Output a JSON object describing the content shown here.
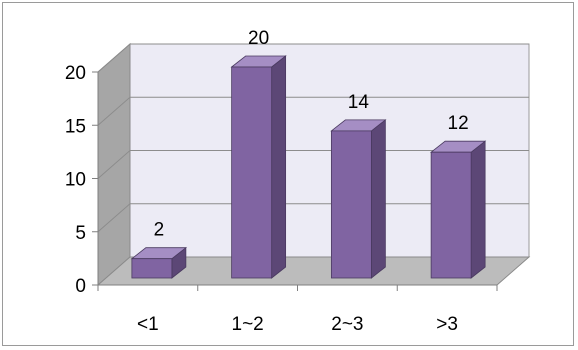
{
  "chart_data": {
    "type": "bar",
    "style": "3d-column",
    "categories": [
      "<1",
      "1~2",
      "2~3",
      ">3"
    ],
    "values": [
      2,
      20,
      14,
      12
    ],
    "data_labels": [
      "2",
      "20",
      "14",
      "12"
    ],
    "y_ticks": [
      "0",
      "5",
      "10",
      "15",
      "20"
    ],
    "ylim": [
      0,
      20
    ],
    "grid": true,
    "legend": "none",
    "colors": {
      "bar_front": "#8064a2",
      "bar_side": "#5c4776",
      "bar_top": "#a58ec4",
      "back_wall": "#ecebf5",
      "side_wall": "#a6a6a6",
      "floor": "#bcbcbc",
      "gridline": "#8c8c8c"
    }
  }
}
